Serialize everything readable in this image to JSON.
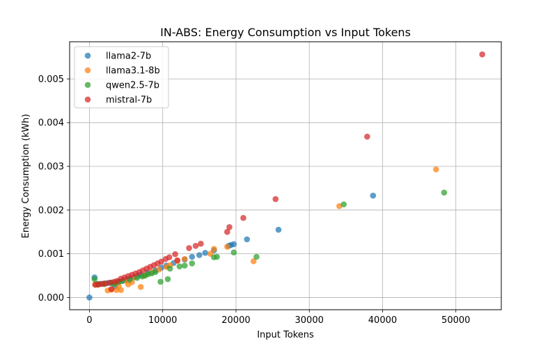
{
  "chart_data": {
    "type": "scatter",
    "title": "IN-ABS: Energy Consumption vs Input Tokens",
    "xlabel": "Input Tokens",
    "ylabel": "Energy Consumption (kWh)",
    "xlim": [
      -2700,
      56200
    ],
    "ylim": [
      -0.00028,
      0.00585
    ],
    "xticks": [
      0,
      10000,
      20000,
      30000,
      40000,
      50000
    ],
    "xtick_labels": [
      "0",
      "10000",
      "20000",
      "30000",
      "40000",
      "50000"
    ],
    "yticks": [
      0.0,
      0.001,
      0.002,
      0.003,
      0.004,
      0.005
    ],
    "ytick_labels": [
      "0.000",
      "0.001",
      "0.002",
      "0.003",
      "0.004",
      "0.005"
    ],
    "grid": true,
    "legend_position": "top-left",
    "series": [
      {
        "name": "llama2-7b",
        "color": "#1f77b4",
        "points": [
          [
            0,
            0.0
          ],
          [
            700,
            0.00046
          ],
          [
            1000,
            0.0003
          ],
          [
            1500,
            0.00031
          ],
          [
            2000,
            0.00032
          ],
          [
            2500,
            0.00033
          ],
          [
            3000,
            0.00034
          ],
          [
            3500,
            0.00025
          ],
          [
            4000,
            0.00036
          ],
          [
            4500,
            0.00038
          ],
          [
            5000,
            0.00041
          ],
          [
            5500,
            0.00043
          ],
          [
            6000,
            0.00046
          ],
          [
            6500,
            0.00049
          ],
          [
            7000,
            0.00052
          ],
          [
            8000,
            0.00057
          ],
          [
            9000,
            0.00062
          ],
          [
            9800,
            0.00068
          ],
          [
            10500,
            0.00073
          ],
          [
            11500,
            0.00079
          ],
          [
            13000,
            0.00087
          ],
          [
            14000,
            0.00093
          ],
          [
            15000,
            0.00097
          ],
          [
            15800,
            0.00102
          ],
          [
            17000,
            0.00108
          ],
          [
            19000,
            0.00118
          ],
          [
            19300,
            0.0012
          ],
          [
            19700,
            0.00122
          ],
          [
            21500,
            0.00133
          ],
          [
            25800,
            0.00155
          ],
          [
            38700,
            0.00233
          ]
        ]
      },
      {
        "name": "llama3.1-8b",
        "color": "#ff7f0e",
        "points": [
          [
            800,
            0.0003
          ],
          [
            1200,
            0.00029
          ],
          [
            2000,
            0.00031
          ],
          [
            2500,
            0.00016
          ],
          [
            3000,
            0.00018
          ],
          [
            3500,
            0.00034
          ],
          [
            3700,
            0.00017
          ],
          [
            4000,
            0.00026
          ],
          [
            4300,
            0.00017
          ],
          [
            5000,
            0.00038
          ],
          [
            5300,
            0.0003
          ],
          [
            5800,
            0.00035
          ],
          [
            6200,
            0.00047
          ],
          [
            7000,
            0.00024
          ],
          [
            7500,
            0.0005
          ],
          [
            8500,
            0.00058
          ],
          [
            9500,
            0.00064
          ],
          [
            10500,
            0.0007
          ],
          [
            11000,
            0.00074
          ],
          [
            12000,
            0.00084
          ],
          [
            13000,
            0.00088
          ],
          [
            16500,
            0.001
          ],
          [
            17000,
            0.00111
          ],
          [
            18800,
            0.00116
          ],
          [
            22400,
            0.00083
          ],
          [
            34100,
            0.00209
          ],
          [
            47300,
            0.00293
          ]
        ]
      },
      {
        "name": "qwen2.5-7b",
        "color": "#2ca02c",
        "points": [
          [
            700,
            0.00042
          ],
          [
            1200,
            0.00031
          ],
          [
            2000,
            0.00031
          ],
          [
            3000,
            0.00033
          ],
          [
            3500,
            0.00031
          ],
          [
            4000,
            0.00036
          ],
          [
            4500,
            0.00038
          ],
          [
            5500,
            0.00041
          ],
          [
            6500,
            0.00045
          ],
          [
            7200,
            0.00048
          ],
          [
            7600,
            0.0005
          ],
          [
            8000,
            0.00053
          ],
          [
            8500,
            0.00055
          ],
          [
            9000,
            0.00058
          ],
          [
            9700,
            0.00036
          ],
          [
            10700,
            0.00042
          ],
          [
            11000,
            0.00066
          ],
          [
            12300,
            0.00071
          ],
          [
            13000,
            0.00073
          ],
          [
            14000,
            0.00078
          ],
          [
            17000,
            0.00092
          ],
          [
            17400,
            0.00093
          ],
          [
            19700,
            0.00103
          ],
          [
            22800,
            0.00093
          ],
          [
            34700,
            0.00213
          ],
          [
            48400,
            0.0024
          ]
        ]
      },
      {
        "name": "mistral-7b",
        "color": "#d62728",
        "points": [
          [
            800,
            0.00029
          ],
          [
            1200,
            0.0003
          ],
          [
            1700,
            0.00031
          ],
          [
            2200,
            0.00032
          ],
          [
            2800,
            0.00034
          ],
          [
            3000,
            0.00019
          ],
          [
            3400,
            0.00036
          ],
          [
            3800,
            0.00038
          ],
          [
            4300,
            0.00043
          ],
          [
            4800,
            0.00046
          ],
          [
            5300,
            0.00049
          ],
          [
            5800,
            0.00052
          ],
          [
            6300,
            0.00055
          ],
          [
            6800,
            0.00058
          ],
          [
            7300,
            0.00062
          ],
          [
            7800,
            0.00066
          ],
          [
            8300,
            0.0007
          ],
          [
            8800,
            0.00074
          ],
          [
            9300,
            0.00078
          ],
          [
            9800,
            0.00082
          ],
          [
            10400,
            0.00088
          ],
          [
            10900,
            0.00092
          ],
          [
            11700,
            0.00099
          ],
          [
            12000,
            0.00085
          ],
          [
            13600,
            0.00113
          ],
          [
            14500,
            0.00118
          ],
          [
            15200,
            0.00123
          ],
          [
            18800,
            0.0015
          ],
          [
            19100,
            0.00161
          ],
          [
            21000,
            0.00182
          ],
          [
            25400,
            0.00225
          ],
          [
            37900,
            0.00368
          ],
          [
            53600,
            0.00556
          ]
        ]
      }
    ]
  }
}
